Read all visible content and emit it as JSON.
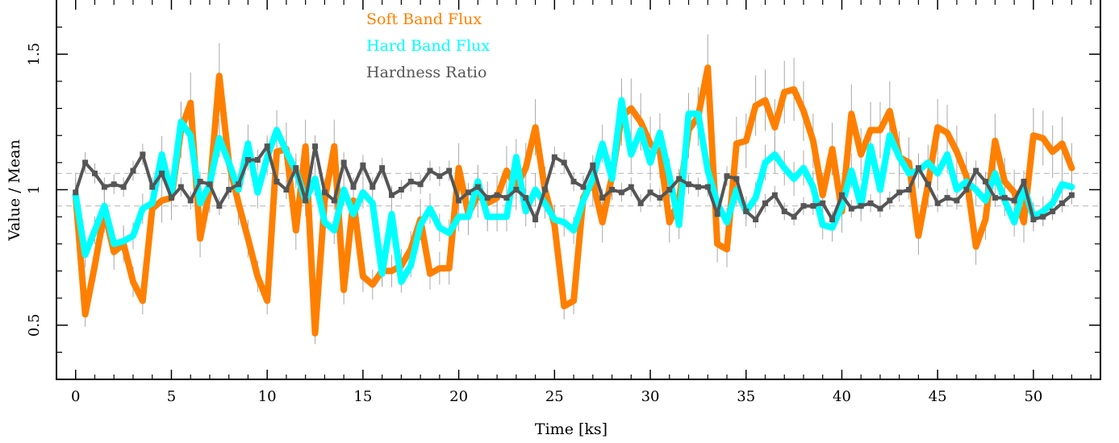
{
  "chart_data": {
    "type": "line",
    "xlabel": "Time [ks]",
    "ylabel": "Value / Mean",
    "xlim": [
      -1,
      53.5
    ],
    "ylim": [
      0.3,
      1.7
    ],
    "xticks": [
      "0",
      "5",
      "10",
      "15",
      "20",
      "25",
      "30",
      "35",
      "40",
      "45",
      "50"
    ],
    "yticks": [
      "0.5",
      "1",
      "1.5"
    ],
    "reference_lines": [
      0.94,
      1.06
    ],
    "legend_position": "top-center",
    "grid": false,
    "series": [
      {
        "name": "Soft Band Flux",
        "color": "#ff8000",
        "x": [
          0,
          0.5,
          1,
          1.5,
          2,
          2.5,
          3,
          3.5,
          4,
          4.5,
          5,
          5.5,
          6,
          6.5,
          7,
          7.5,
          8,
          8.5,
          9,
          9.5,
          10,
          10.5,
          11,
          11.5,
          12,
          12.5,
          13,
          13.5,
          14,
          14.5,
          15,
          15.5,
          16,
          16.5,
          17,
          17.5,
          18,
          18.5,
          19,
          19.5,
          20,
          20.5,
          21,
          21.5,
          22,
          22.5,
          23,
          23.5,
          24,
          24.5,
          25,
          25.5,
          26,
          26.5,
          27,
          27.5,
          28,
          28.5,
          29,
          29.5,
          30,
          30.5,
          31,
          31.5,
          32,
          32.5,
          33,
          33.5,
          34,
          34.5,
          35,
          35.5,
          36,
          36.5,
          37,
          37.5,
          38,
          38.5,
          39,
          39.5,
          40,
          40.5,
          41,
          41.5,
          42,
          42.5,
          43,
          43.5,
          44,
          44.5,
          45,
          45.5,
          46,
          46.5,
          47,
          47.5,
          48,
          48.5,
          49,
          49.5,
          50,
          50.5,
          51,
          51.5,
          52
        ],
        "values": [
          0.98,
          0.54,
          0.72,
          0.92,
          0.77,
          0.8,
          0.66,
          0.59,
          0.93,
          0.96,
          0.97,
          1.22,
          1.32,
          0.82,
          1.0,
          1.42,
          1.1,
          0.95,
          0.82,
          0.68,
          0.59,
          1.14,
          1.15,
          0.85,
          1.16,
          0.47,
          0.96,
          1.16,
          0.63,
          0.96,
          0.68,
          0.65,
          0.7,
          0.7,
          0.72,
          0.78,
          0.89,
          0.69,
          0.71,
          0.71,
          1.08,
          0.91,
          0.98,
          0.95,
          0.97,
          1.07,
          1.01,
          1.08,
          1.23,
          1.0,
          0.87,
          0.57,
          0.59,
          0.97,
          1.03,
          0.88,
          1.05,
          1.27,
          1.3,
          1.25,
          1.17,
          1.14,
          0.88,
          0.96,
          1.22,
          1.27,
          1.45,
          0.8,
          0.78,
          1.17,
          1.18,
          1.31,
          1.33,
          1.23,
          1.36,
          1.37,
          1.29,
          1.18,
          0.98,
          1.15,
          0.92,
          1.28,
          1.13,
          1.22,
          1.22,
          1.29,
          1.12,
          1.1,
          0.83,
          1.02,
          1.23,
          1.21,
          1.14,
          1.05,
          0.79,
          0.89,
          1.18,
          1.03,
          0.99,
          0.88,
          1.2,
          1.19,
          1.14,
          1.17,
          1.08
        ]
      },
      {
        "name": "Hard Band Flux",
        "color": "#00ffff",
        "x": [
          0,
          0.5,
          1,
          1.5,
          2,
          2.5,
          3,
          3.5,
          4,
          4.5,
          5,
          5.5,
          6,
          6.5,
          7,
          7.5,
          8,
          8.5,
          9,
          9.5,
          10,
          10.5,
          11,
          11.5,
          12,
          12.5,
          13,
          13.5,
          14,
          14.5,
          15,
          15.5,
          16,
          16.5,
          17,
          17.5,
          18,
          18.5,
          19,
          19.5,
          20,
          20.5,
          21,
          21.5,
          22,
          22.5,
          23,
          23.5,
          24,
          24.5,
          25,
          25.5,
          26,
          26.5,
          27,
          27.5,
          28,
          28.5,
          29,
          29.5,
          30,
          30.5,
          31,
          31.5,
          32,
          32.5,
          33,
          33.5,
          34,
          34.5,
          35,
          35.5,
          36,
          36.5,
          37,
          37.5,
          38,
          38.5,
          39,
          39.5,
          40,
          40.5,
          41,
          41.5,
          42,
          42.5,
          43,
          43.5,
          44,
          44.5,
          45,
          45.5,
          46,
          46.5,
          47,
          47.5,
          48,
          48.5,
          49,
          49.5,
          50,
          50.5,
          51,
          51.5,
          52
        ],
        "values": [
          0.98,
          0.76,
          0.85,
          0.94,
          0.8,
          0.81,
          0.83,
          0.93,
          0.95,
          1.13,
          0.98,
          1.25,
          1.2,
          0.95,
          1.02,
          1.19,
          1.1,
          1.0,
          1.17,
          0.99,
          1.12,
          1.22,
          1.14,
          1.07,
          0.96,
          1.04,
          0.88,
          0.85,
          1.0,
          0.91,
          0.99,
          0.95,
          0.69,
          0.91,
          0.66,
          0.72,
          0.87,
          0.93,
          0.86,
          0.84,
          0.9,
          0.9,
          1.03,
          0.9,
          0.9,
          0.9,
          1.12,
          0.92,
          1.0,
          0.95,
          0.89,
          0.88,
          0.85,
          0.96,
          1.04,
          1.17,
          1.04,
          1.33,
          1.13,
          1.22,
          1.1,
          1.21,
          1.05,
          0.87,
          1.28,
          1.28,
          1.07,
          0.95,
          0.88,
          1.0,
          0.92,
          0.97,
          1.1,
          1.13,
          1.08,
          1.04,
          1.08,
          1.01,
          0.87,
          0.86,
          0.94,
          1.07,
          0.94,
          1.16,
          1.0,
          1.2,
          1.12,
          1.06,
          1.07,
          1.1,
          1.06,
          1.13,
          1.0,
          1.03,
          1.0,
          0.96,
          1.06,
          0.96,
          0.88,
          1.01,
          0.9,
          0.92,
          0.95,
          1.02,
          1.01
        ]
      },
      {
        "name": "Hardness Ratio",
        "color": "#555555",
        "x": [
          0,
          0.5,
          1,
          1.5,
          2,
          2.5,
          3,
          3.5,
          4,
          4.5,
          5,
          5.5,
          6,
          6.5,
          7,
          7.5,
          8,
          8.5,
          9,
          9.5,
          10,
          10.5,
          11,
          11.5,
          12,
          12.5,
          13,
          13.5,
          14,
          14.5,
          15,
          15.5,
          16,
          16.5,
          17,
          17.5,
          18,
          18.5,
          19,
          19.5,
          20,
          20.5,
          21,
          21.5,
          22,
          22.5,
          23,
          23.5,
          24,
          24.5,
          25,
          25.5,
          26,
          26.5,
          27,
          27.5,
          28,
          28.5,
          29,
          29.5,
          30,
          30.5,
          31,
          31.5,
          32,
          32.5,
          33,
          33.5,
          34,
          34.5,
          35,
          35.5,
          36,
          36.5,
          37,
          37.5,
          38,
          38.5,
          39,
          39.5,
          40,
          40.5,
          41,
          41.5,
          42,
          42.5,
          43,
          43.5,
          44,
          44.5,
          45,
          45.5,
          46,
          46.5,
          47,
          47.5,
          48,
          48.5,
          49,
          49.5,
          50,
          50.5,
          51,
          51.5,
          52
        ],
        "values": [
          0.99,
          1.1,
          1.06,
          1.01,
          1.02,
          1.01,
          1.07,
          1.13,
          1.01,
          1.06,
          0.97,
          1.01,
          0.96,
          1.03,
          1.02,
          0.94,
          1.0,
          1.02,
          1.11,
          1.11,
          1.16,
          1.03,
          1.0,
          1.08,
          0.96,
          1.16,
          0.99,
          0.96,
          1.1,
          1.01,
          1.09,
          1.01,
          1.08,
          0.98,
          1.0,
          1.03,
          1.02,
          1.07,
          1.05,
          1.07,
          0.96,
          0.99,
          1.01,
          0.97,
          0.98,
          0.97,
          1.0,
          0.97,
          0.89,
          1.0,
          1.12,
          1.1,
          1.03,
          1.01,
          1.09,
          0.97,
          1.0,
          0.99,
          1.01,
          0.95,
          0.99,
          0.97,
          1.0,
          1.04,
          1.02,
          1.01,
          1.01,
          0.91,
          1.05,
          1.04,
          0.92,
          0.89,
          0.95,
          0.98,
          0.92,
          0.9,
          0.94,
          0.94,
          0.95,
          0.89,
          0.98,
          0.93,
          0.94,
          0.95,
          0.93,
          0.96,
          0.99,
          1.0,
          1.08,
          1.02,
          0.95,
          0.97,
          0.96,
          1.0,
          1.07,
          1.03,
          0.97,
          0.97,
          0.96,
          1.03,
          0.89,
          0.9,
          0.92,
          0.95,
          0.98
        ]
      }
    ]
  }
}
